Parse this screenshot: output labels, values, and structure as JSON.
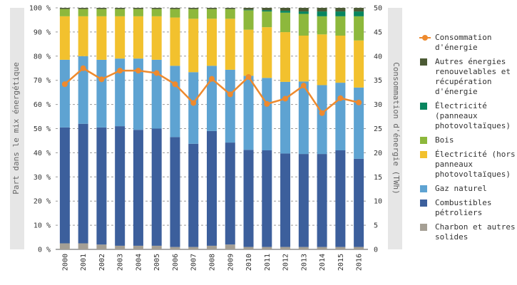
{
  "chart_data": {
    "type": "bar",
    "stacked": true,
    "percent": true,
    "categories": [
      "2000",
      "2001",
      "2002",
      "2003",
      "2004",
      "2005",
      "2006",
      "2007",
      "2008",
      "2009",
      "2010",
      "2011",
      "2012",
      "2013",
      "2014",
      "2015",
      "2016"
    ],
    "series": [
      {
        "name": "Charbon et autres solides",
        "color": "#a59f94",
        "values": [
          2.5,
          2.5,
          2,
          1.5,
          1.5,
          1.5,
          1,
          1,
          1.5,
          2,
          1,
          1,
          1,
          1,
          1,
          1,
          1
        ]
      },
      {
        "name": "Combustibles pétroliers",
        "color": "#3c5f9c",
        "values": [
          48,
          49.5,
          48.5,
          49.5,
          48,
          48.5,
          45.5,
          42.5,
          47.5,
          42,
          40,
          40,
          38.5,
          38.5,
          38.5,
          40,
          36.5
        ]
      },
      {
        "name": "Gaz naturel",
        "color": "#5ea3d2",
        "values": [
          28,
          28,
          28,
          28,
          29.5,
          28.5,
          29.5,
          29.5,
          27,
          30,
          30.5,
          30,
          29.5,
          30,
          28.5,
          28,
          29.5
        ]
      },
      {
        "name": "Électricité (hors panneaux photovoltaïques)",
        "color": "#f2c12e",
        "values": [
          18,
          16.5,
          18,
          17.5,
          17.5,
          18,
          20,
          22,
          19.5,
          21,
          19,
          21,
          20.5,
          19,
          21,
          19.5,
          19.5
        ]
      },
      {
        "name": "Bois",
        "color": "#8db83c",
        "values": [
          3,
          3,
          3,
          3,
          3,
          3,
          3.5,
          4,
          4,
          4,
          8,
          6.5,
          8,
          9,
          7.5,
          8,
          10
        ]
      },
      {
        "name": "Électricité (panneaux photovoltaïques)",
        "color": "#07855e",
        "values": [
          0,
          0,
          0,
          0,
          0,
          0,
          0,
          0,
          0,
          0,
          0.2,
          0.5,
          0.8,
          1,
          2,
          2,
          2
        ]
      },
      {
        "name": "Autres énergies renouvelables et récupération d'énergie",
        "color": "#4b5a34",
        "values": [
          0.5,
          0.5,
          0.5,
          0.5,
          0.5,
          0.5,
          0.5,
          0.5,
          0.5,
          0.5,
          0.8,
          1,
          1.2,
          1.5,
          1.5,
          1.5,
          1.5
        ]
      }
    ],
    "line": {
      "name": "Consommation d'énergie",
      "color": "#ee8a2e",
      "axis": "right",
      "values": [
        34.2,
        37.5,
        35.2,
        37,
        37,
        36.5,
        34.2,
        30.3,
        35.3,
        32.1,
        35.7,
        30.1,
        31.2,
        33.9,
        28.2,
        31.3,
        30.4
      ]
    },
    "y_left": {
      "label": "Part dans le mix énergétique",
      "ylim": [
        0,
        100
      ],
      "ticks": [
        "0 %",
        "10 %",
        "20 %",
        "30 %",
        "40 %",
        "50 %",
        "60 %",
        "70 %",
        "80 %",
        "90 %",
        "100 %"
      ]
    },
    "y_right": {
      "label": "Consommation d'énergie (TWh)",
      "ylim": [
        0,
        50
      ],
      "ticks": [
        "0",
        "5",
        "10",
        "15",
        "20",
        "25",
        "30",
        "35",
        "40",
        "45",
        "50"
      ]
    },
    "grid": true,
    "legend_position": "right"
  },
  "legend": [
    {
      "label": "Consommation d'énergie",
      "color": "#ee8a2e",
      "kind": "line"
    },
    {
      "label": "Autres énergies renouvelables et récupération d'énergie",
      "color": "#4b5a34",
      "kind": "box"
    },
    {
      "label": "Électricité (panneaux photovoltaïques)",
      "color": "#07855e",
      "kind": "box"
    },
    {
      "label": "Bois",
      "color": "#8db83c",
      "kind": "box"
    },
    {
      "label": "Électricité (hors panneaux photovoltaïques)",
      "color": "#f2c12e",
      "kind": "box"
    },
    {
      "label": "Gaz naturel",
      "color": "#5ea3d2",
      "kind": "box"
    },
    {
      "label": "Combustibles pétroliers",
      "color": "#3c5f9c",
      "kind": "box"
    },
    {
      "label": "Charbon et autres solides",
      "color": "#a59f94",
      "kind": "box"
    }
  ]
}
